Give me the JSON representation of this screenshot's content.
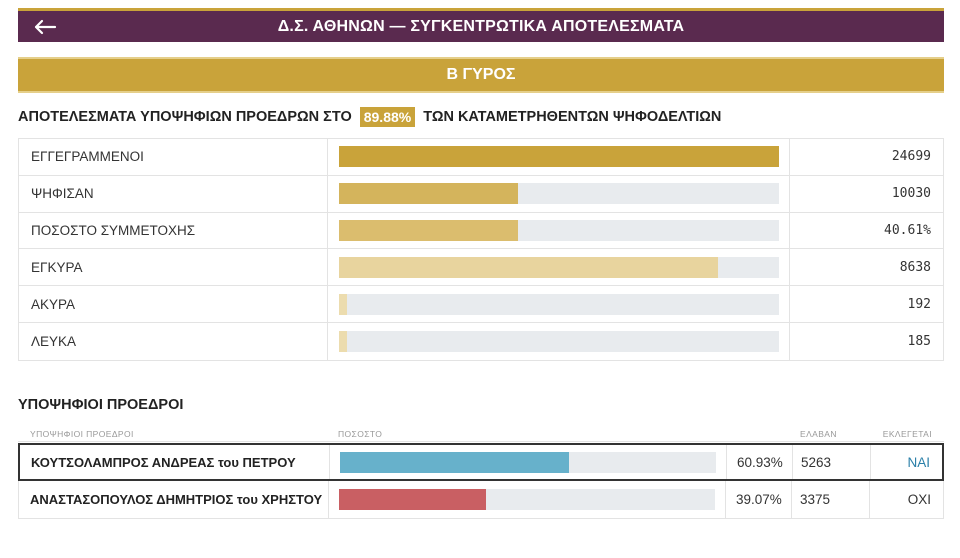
{
  "header": {
    "title": "Δ.Σ. ΑΘΗΝΩΝ — ΣΥΓΚΕΝΤΡΩΤΙΚΑ ΑΠΟΤΕΛΕΣΜΑΤΑ",
    "back_icon": "arrow-left-icon"
  },
  "round": {
    "label": "Β ΓΥΡΟΣ"
  },
  "summary": {
    "prefix": "ΑΠΟΤΕΛΕΣΜΑΤΑ ΥΠΟΨΗΦΙΩΝ ΠΡΟΕΔΡΩΝ ΣΤΟ",
    "percent": "89.88%",
    "suffix": "ΤΩΝ ΚΑΤΑΜΕΤΡΗΘΕΝΤΩΝ ΨΗΦΟΔΕΛΤΙΩΝ"
  },
  "stats": [
    {
      "label": "ΕΓΓΕΓΡΑΜΜΕΝΟΙ",
      "value": "24699",
      "fill_fraction": 1.0,
      "color": "#c9a33a"
    },
    {
      "label": "ΨΗΦΙΣΑΝ",
      "value": "10030",
      "fill_fraction": 0.4061,
      "color": "#d4b45c"
    },
    {
      "label": "ΠΟΣΟΣΤΟ ΣΥΜΜΕΤΟΧΗΣ",
      "value": "40.61%",
      "fill_fraction": 0.4061,
      "color": "#dbbd6e"
    },
    {
      "label": "ΕΓΚΥΡΑ",
      "value": "8638",
      "fill_fraction": 0.8612,
      "color": "#e8d49e"
    },
    {
      "label": "ΑΚΥΡΑ",
      "value": "192",
      "fill_fraction": 0.0191,
      "color": "#ecdcae"
    },
    {
      "label": "ΛΕΥΚΑ",
      "value": "185",
      "fill_fraction": 0.0184,
      "color": "#ecdcae"
    }
  ],
  "candidates_section": {
    "title": "ΥΠΟΨΗΦΙΟΙ ΠΡΟΕΔΡΟΙ",
    "columns": {
      "name": "ΥΠΟΨΗΦΙΟΙ ΠΡΟΕΔΡΟΙ",
      "percent": "ΠΟΣΟΣΤΟ",
      "votes": "ΕΛΑΒΑΝ",
      "elected": "ΕΚΛΕΓΕΤΑΙ"
    },
    "candidates": [
      {
        "name": "ΚΟΥΤΣΟΛΑΜΠΡΟΣ ΑΝΔΡΕΑΣ του ΠΕΤΡΟΥ",
        "percent": "60.93%",
        "fill_fraction": 0.6093,
        "votes": "5263",
        "elected": "ΝΑΙ",
        "bar_color": "#67b1cb",
        "elected_color": "#2a7fa8"
      },
      {
        "name": "ΑΝΑΣΤΑΣΟΠΟΥΛΟΣ ΔΗΜΗΤΡΙΟΣ του ΧΡΗΣΤΟΥ",
        "percent": "39.07%",
        "fill_fraction": 0.3907,
        "votes": "3375",
        "elected": "ΟΧΙ",
        "bar_color": "#c95f63",
        "elected_color": "#333333"
      }
    ]
  }
}
